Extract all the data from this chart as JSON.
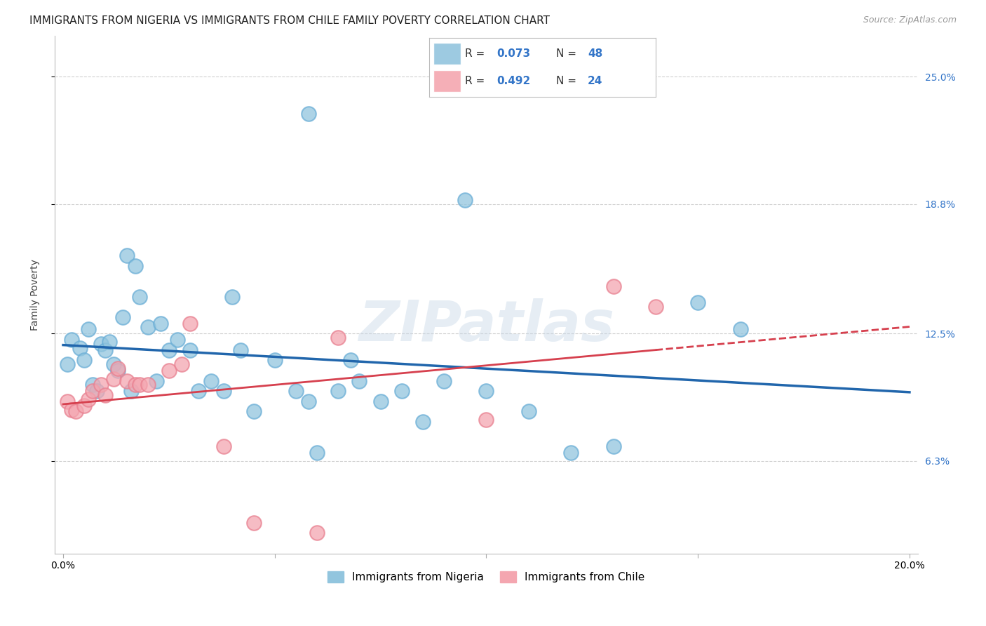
{
  "title": "IMMIGRANTS FROM NIGERIA VS IMMIGRANTS FROM CHILE FAMILY POVERTY CORRELATION CHART",
  "source": "Source: ZipAtlas.com",
  "ylabel": "Family Poverty",
  "xlim": [
    -0.002,
    0.202
  ],
  "ylim": [
    0.018,
    0.27
  ],
  "x_ticks": [
    0.0,
    0.05,
    0.1,
    0.15,
    0.2
  ],
  "x_tick_labels": [
    "0.0%",
    "",
    "",
    "",
    "20.0%"
  ],
  "y_tick_labels_right": [
    "6.3%",
    "12.5%",
    "18.8%",
    "25.0%"
  ],
  "y_tick_values_right": [
    0.063,
    0.125,
    0.188,
    0.25
  ],
  "legend_r_nigeria": "0.073",
  "legend_n_nigeria": "48",
  "legend_r_chile": "0.492",
  "legend_n_chile": "24",
  "nigeria_color": "#92c5de",
  "nigeria_edge_color": "#6aaed6",
  "chile_color": "#f4a6b0",
  "chile_edge_color": "#e88090",
  "nigeria_line_color": "#2166ac",
  "chile_line_color": "#d6404e",
  "background_color": "#ffffff",
  "grid_color": "#d0d0d0",
  "watermark": "ZIPatlas",
  "title_fontsize": 11,
  "axis_label_fontsize": 10,
  "tick_fontsize": 10,
  "legend_fontsize": 11,
  "nigeria_x": [
    0.001,
    0.002,
    0.004,
    0.005,
    0.006,
    0.007,
    0.008,
    0.009,
    0.01,
    0.011,
    0.012,
    0.013,
    0.014,
    0.015,
    0.016,
    0.017,
    0.018,
    0.02,
    0.022,
    0.023,
    0.025,
    0.027,
    0.03,
    0.032,
    0.035,
    0.038,
    0.04,
    0.042,
    0.045,
    0.05,
    0.055,
    0.058,
    0.06,
    0.065,
    0.068,
    0.07,
    0.075,
    0.08,
    0.085,
    0.09,
    0.095,
    0.1,
    0.11,
    0.12,
    0.13,
    0.15,
    0.16,
    0.058
  ],
  "nigeria_y": [
    0.11,
    0.122,
    0.118,
    0.112,
    0.127,
    0.1,
    0.097,
    0.12,
    0.117,
    0.121,
    0.11,
    0.107,
    0.133,
    0.163,
    0.097,
    0.158,
    0.143,
    0.128,
    0.102,
    0.13,
    0.117,
    0.122,
    0.117,
    0.097,
    0.102,
    0.097,
    0.143,
    0.117,
    0.087,
    0.112,
    0.097,
    0.092,
    0.067,
    0.097,
    0.112,
    0.102,
    0.092,
    0.097,
    0.082,
    0.102,
    0.19,
    0.097,
    0.087,
    0.067,
    0.07,
    0.14,
    0.127,
    0.232
  ],
  "chile_x": [
    0.001,
    0.002,
    0.003,
    0.005,
    0.006,
    0.007,
    0.009,
    0.01,
    0.012,
    0.013,
    0.015,
    0.017,
    0.018,
    0.02,
    0.025,
    0.028,
    0.03,
    0.038,
    0.045,
    0.06,
    0.065,
    0.1,
    0.13,
    0.14
  ],
  "chile_y": [
    0.092,
    0.088,
    0.087,
    0.09,
    0.093,
    0.097,
    0.1,
    0.095,
    0.103,
    0.108,
    0.102,
    0.1,
    0.1,
    0.1,
    0.107,
    0.11,
    0.13,
    0.07,
    0.033,
    0.028,
    0.123,
    0.083,
    0.148,
    0.138
  ]
}
